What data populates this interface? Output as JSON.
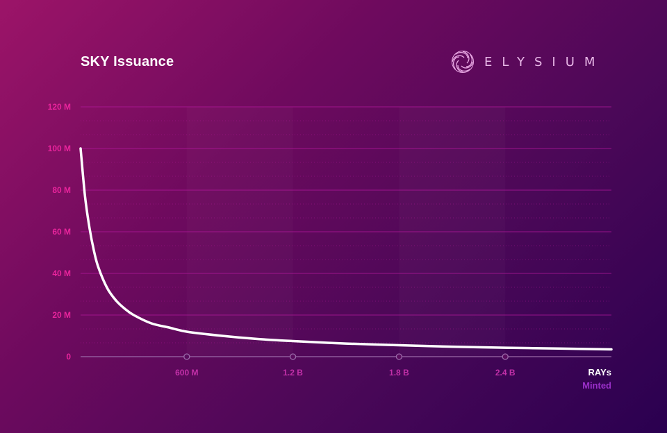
{
  "brand": {
    "name": "ELYSIUM",
    "logo_icon": "elysium-swirl-icon"
  },
  "colors": {
    "line": "#ffffff",
    "grid": "#b3189c",
    "ytick": "#e8249c",
    "xtick": "#c230a8"
  },
  "chart_data": {
    "type": "line",
    "title": "SKY Issuance",
    "xlabel": [
      "RAYs",
      "Minted"
    ],
    "ylabel": "",
    "xlim": [
      0,
      3000000000
    ],
    "ylim": [
      0,
      120000000
    ],
    "x_ticks": [
      {
        "value": 600000000,
        "label": "600 M"
      },
      {
        "value": 1200000000,
        "label": "1.2 B"
      },
      {
        "value": 1800000000,
        "label": "1.8 B"
      },
      {
        "value": 2400000000,
        "label": "2.4 B"
      }
    ],
    "y_ticks": [
      {
        "value": 0,
        "label": "0"
      },
      {
        "value": 20000000,
        "label": "20 M"
      },
      {
        "value": 40000000,
        "label": "40 M"
      },
      {
        "value": 60000000,
        "label": "60 M"
      },
      {
        "value": 80000000,
        "label": "80 M"
      },
      {
        "value": 100000000,
        "label": "100 M"
      },
      {
        "value": 120000000,
        "label": "120 M"
      }
    ],
    "grid": true,
    "series": [
      {
        "x": [
          0,
          25000000,
          50000000,
          75000000,
          100000000,
          150000000,
          200000000,
          250000000,
          300000000,
          400000000,
          500000000,
          600000000,
          800000000,
          1000000000,
          1200000000,
          1500000000,
          1800000000,
          2100000000,
          2400000000,
          2700000000,
          3000000000
        ],
        "y": [
          100000000,
          77000000,
          62000000,
          51000000,
          43000000,
          33000000,
          27000000,
          23000000,
          20000000,
          16000000,
          14000000,
          12000000,
          10000000,
          8500000,
          7500000,
          6300000,
          5500000,
          4800000,
          4300000,
          3900000,
          3500000
        ]
      }
    ]
  }
}
